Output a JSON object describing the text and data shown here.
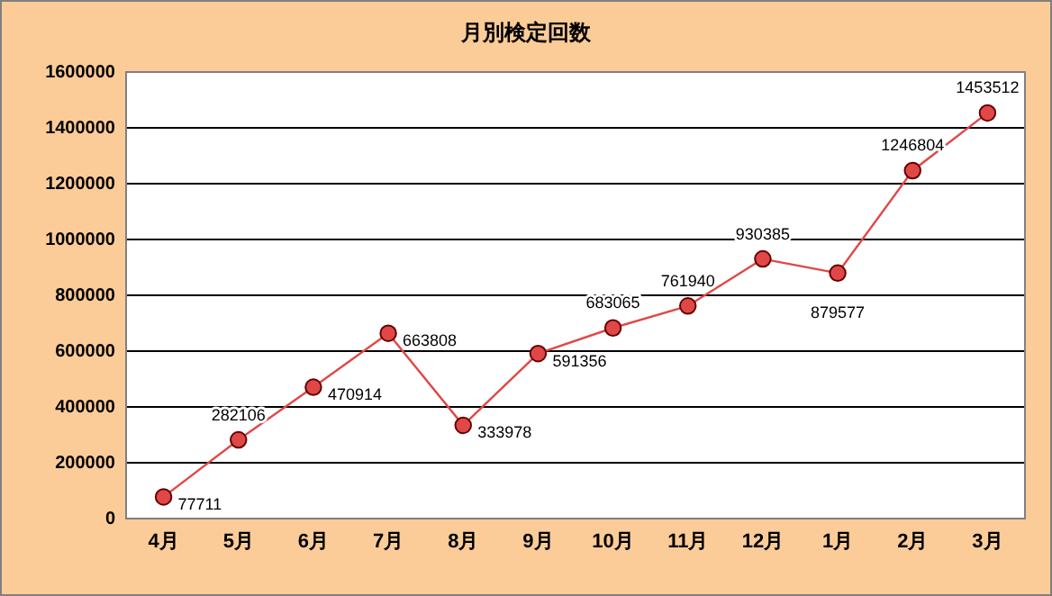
{
  "chart_data": {
    "type": "line",
    "title": "月別検定回数",
    "categories": [
      "4月",
      "5月",
      "6月",
      "7月",
      "8月",
      "9月",
      "10月",
      "11月",
      "12月",
      "1月",
      "2月",
      "3月"
    ],
    "series": [
      {
        "color": "#e04848",
        "values": [
          77711,
          282106,
          470914,
          663808,
          333978,
          591356,
          683065,
          761940,
          930385,
          879577,
          1246804,
          1453512
        ]
      }
    ],
    "ylim": [
      0,
      1600000
    ],
    "yticks": [
      0,
      200000,
      400000,
      600000,
      800000,
      1000000,
      1200000,
      1400000,
      1600000
    ],
    "grid": "y",
    "marker": "circle",
    "line_style": "solid",
    "data_labels": true
  }
}
